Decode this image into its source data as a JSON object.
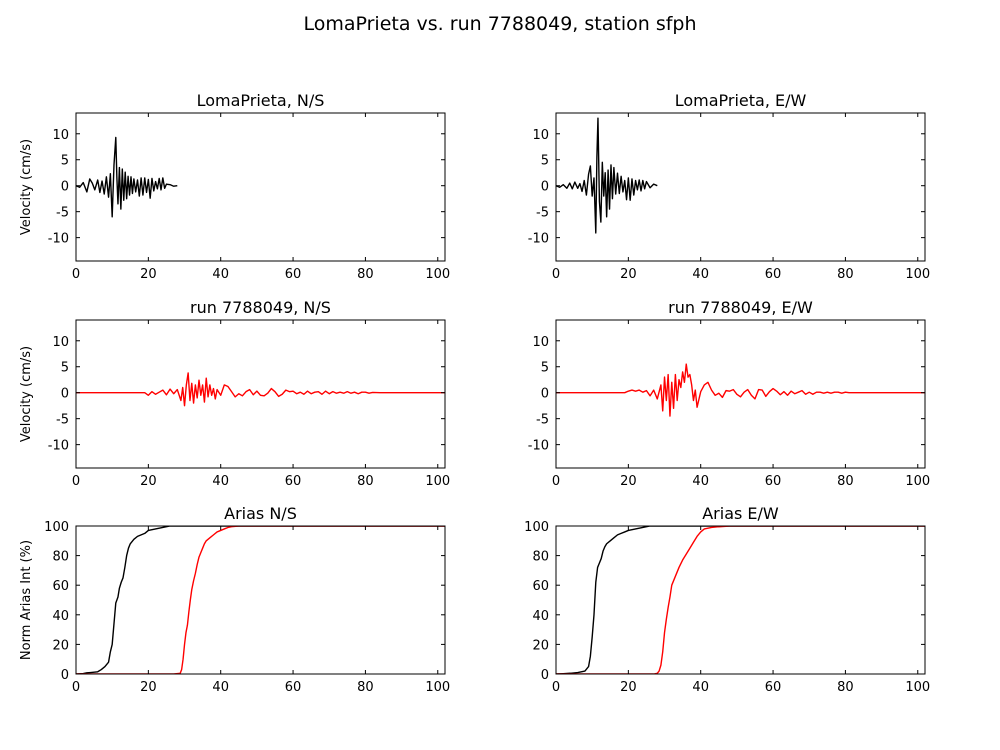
{
  "figure": {
    "title": "LomaPrieta vs. run 7788049, station sfph"
  },
  "colors": {
    "recorded": "#000000",
    "simulated": "#ff0000",
    "axes": "#000000",
    "background": "#ffffff"
  },
  "chart_data": [
    {
      "id": "vel-rec-ns",
      "type": "line",
      "title": "LomaPrieta, N/S",
      "xlabel": "",
      "ylabel": "Velocity (cm/s)",
      "xlim": [
        0,
        102
      ],
      "ylim": [
        -14.5,
        14
      ],
      "xticks": [
        0,
        20,
        40,
        60,
        80,
        100
      ],
      "yticks": [
        10,
        5,
        0,
        -5,
        -10
      ],
      "series": [
        {
          "color": "#000000",
          "x": [
            0,
            1,
            2,
            3,
            3.8,
            4.5,
            5.2,
            6,
            6.6,
            7.2,
            7.8,
            8.4,
            9,
            9.5,
            10,
            10.5,
            11,
            11.3,
            11.6,
            12,
            12.4,
            12.8,
            13.2,
            13.6,
            14,
            14.4,
            14.8,
            15.2,
            15.6,
            16,
            16.5,
            17,
            17.5,
            18,
            18.5,
            19,
            19.5,
            20,
            20.5,
            21,
            21.5,
            22,
            22.5,
            23,
            23.5,
            24,
            24.5,
            25,
            26,
            27,
            28
          ],
          "y": [
            0,
            -0.3,
            0.6,
            -1.2,
            1.3,
            0.5,
            -0.8,
            1.1,
            -1.3,
            0.9,
            -1.6,
            1.7,
            -2.2,
            2.3,
            -6,
            4,
            9.3,
            1.5,
            -3.5,
            3.5,
            -4.5,
            3.2,
            -2.8,
            2.6,
            -2.5,
            1.8,
            -1.8,
            1.7,
            -1.5,
            1.3,
            -1.2,
            1.1,
            -2,
            1.5,
            -1.8,
            1.5,
            -1.3,
            1.2,
            -2.4,
            1.4,
            -1,
            0.8,
            -0.6,
            1.4,
            -0.8,
            1.5,
            -0.5,
            0.3,
            0.2,
            -0.1,
            0
          ]
        }
      ]
    },
    {
      "id": "vel-rec-ew",
      "type": "line",
      "title": "LomaPrieta, E/W",
      "xlabel": "",
      "ylabel": "",
      "xlim": [
        0,
        102
      ],
      "ylim": [
        -14.5,
        14
      ],
      "xticks": [
        0,
        20,
        40,
        60,
        80,
        100
      ],
      "yticks": [
        10,
        5,
        0,
        -5,
        -10
      ],
      "series": [
        {
          "color": "#000000",
          "x": [
            0,
            1,
            2,
            3,
            3.8,
            4.5,
            5.2,
            6,
            6.6,
            7.2,
            7.8,
            8.4,
            9,
            9.5,
            10,
            10.5,
            11,
            11.3,
            11.6,
            12,
            12.4,
            12.8,
            13.2,
            13.6,
            14,
            14.4,
            14.8,
            15.2,
            15.6,
            16,
            16.5,
            17,
            17.5,
            18,
            18.5,
            19,
            19.5,
            20,
            20.5,
            21,
            21.5,
            22,
            22.5,
            23,
            23.5,
            24,
            24.5,
            25,
            26,
            27,
            28
          ],
          "y": [
            0,
            -0.3,
            0.2,
            -0.5,
            0.5,
            -0.6,
            0.7,
            -0.5,
            0.4,
            -1.1,
            1,
            -1.8,
            2.2,
            3.8,
            -2,
            1.5,
            -9.1,
            5.5,
            13,
            -3,
            -7,
            4.5,
            -2,
            2.5,
            -6,
            3,
            -4.5,
            4,
            -2.5,
            3.5,
            -1.6,
            2.4,
            -1.5,
            1.8,
            -1.2,
            1,
            -2.7,
            1.5,
            -2.8,
            1.3,
            -1.8,
            1,
            -0.8,
            1.1,
            -1,
            1,
            -0.6,
            0.8,
            -0.4,
            0.3,
            0
          ]
        }
      ]
    },
    {
      "id": "vel-sim-ns",
      "type": "line",
      "title": "run 7788049, N/S",
      "xlabel": "",
      "ylabel": "Velocity (cm/s)",
      "xlim": [
        0,
        102
      ],
      "ylim": [
        -14.5,
        14
      ],
      "xticks": [
        0,
        20,
        40,
        60,
        80,
        100
      ],
      "yticks": [
        10,
        5,
        0,
        -5,
        -10
      ],
      "series": [
        {
          "color": "#ff0000",
          "x": [
            0,
            10,
            17,
            19,
            20,
            21,
            22,
            23,
            24,
            25,
            26,
            27,
            28,
            29,
            29.5,
            30,
            30.5,
            31,
            31.5,
            32,
            32.5,
            33,
            33.5,
            34,
            34.5,
            35,
            35.5,
            36,
            36.5,
            37,
            37.5,
            38,
            38.5,
            39,
            40,
            41,
            42,
            43,
            44,
            45,
            46,
            47,
            48,
            49,
            50,
            51,
            52,
            53,
            54,
            55,
            56,
            57,
            58,
            59,
            60,
            61,
            62,
            63,
            64,
            65,
            66,
            67,
            68,
            69,
            70,
            71,
            72,
            73,
            74,
            75,
            76,
            77,
            78,
            79,
            80,
            81,
            82,
            84,
            86,
            88,
            90,
            92,
            95,
            98,
            100,
            102
          ],
          "y": [
            0,
            0,
            0,
            0,
            -0.5,
            0.2,
            -0.3,
            0.1,
            0.5,
            -0.4,
            0.7,
            -0.2,
            0.6,
            -1.5,
            1,
            -2.5,
            1.5,
            3.8,
            -1.5,
            1.8,
            -2,
            1.5,
            -1,
            2.4,
            -0.5,
            1.5,
            -1.8,
            2.8,
            -0.8,
            1.5,
            -0.5,
            0.8,
            -1.2,
            0.6,
            -0.5,
            1.5,
            1.2,
            0.2,
            -0.8,
            -0.2,
            -0.6,
            0.2,
            0.6,
            -0.4,
            0.3,
            -0.5,
            -0.6,
            -0.1,
            0.8,
            0.2,
            -0.7,
            -0.3,
            0.5,
            0.2,
            0.3,
            -0.2,
            0.1,
            -0.3,
            0.3,
            -0.2,
            0.1,
            0.2,
            -0.3,
            0.3,
            -0.2,
            0.2,
            -0.1,
            0.1,
            -0.1,
            0.2,
            -0.1,
            0.1,
            -0.2,
            0.1,
            0.1,
            -0.1,
            0.05,
            0,
            0,
            0,
            0,
            0,
            0,
            0,
            0,
            0
          ]
        }
      ]
    },
    {
      "id": "vel-sim-ew",
      "type": "line",
      "title": "run 7788049, E/W",
      "xlabel": "",
      "ylabel": "",
      "xlim": [
        0,
        102
      ],
      "ylim": [
        -14.5,
        14
      ],
      "xticks": [
        0,
        20,
        40,
        60,
        80,
        100
      ],
      "yticks": [
        10,
        5,
        0,
        -5,
        -10
      ],
      "series": [
        {
          "color": "#ff0000",
          "x": [
            0,
            10,
            17,
            19,
            20,
            21,
            22,
            23,
            24,
            25,
            26,
            27,
            28,
            29,
            29.5,
            30,
            30.5,
            31,
            31.5,
            32,
            32.5,
            33,
            33.5,
            34,
            34.5,
            35,
            35.5,
            36,
            36.5,
            37,
            37.5,
            38,
            38.5,
            39,
            40,
            41,
            42,
            43,
            44,
            45,
            46,
            47,
            48,
            49,
            50,
            51,
            52,
            53,
            54,
            55,
            56,
            57,
            58,
            59,
            60,
            61,
            62,
            63,
            64,
            65,
            66,
            67,
            68,
            69,
            70,
            71,
            72,
            73,
            74,
            75,
            76,
            77,
            78,
            79,
            80,
            81,
            82,
            84,
            86,
            88,
            90,
            92,
            95,
            98,
            100,
            102
          ],
          "y": [
            0,
            0,
            0,
            0,
            0.3,
            0.5,
            0.3,
            0.5,
            0.1,
            0.4,
            -0.6,
            0.5,
            -1.2,
            1.5,
            -3.5,
            3,
            -1.5,
            3.5,
            -4.5,
            2,
            -3,
            3.5,
            -1.5,
            2.5,
            1,
            4,
            2,
            5.5,
            3,
            3.5,
            1.5,
            -1.5,
            0.5,
            -2.8,
            0.2,
            1.5,
            2,
            0.5,
            -0.5,
            -0.1,
            -0.9,
            0.4,
            0.3,
            0.6,
            -0.3,
            -0.8,
            0.1,
            0.6,
            -0.5,
            -1.2,
            0.6,
            0.5,
            -0.7,
            0.2,
            0.8,
            0.3,
            -0.4,
            0.2,
            -0.5,
            0.3,
            -0.2,
            0.1,
            0.4,
            -0.3,
            0.1,
            -0.3,
            0.1,
            0.1,
            -0.1,
            0.1,
            -0.1,
            0.1,
            0.1,
            -0.1,
            0.1,
            0,
            0,
            0,
            0,
            0,
            0,
            0,
            0,
            0,
            0,
            0
          ]
        }
      ]
    },
    {
      "id": "arias-ns",
      "type": "line",
      "title": "Arias N/S",
      "xlabel": "",
      "ylabel": "Norm Arias Int (%)",
      "xlim": [
        0,
        102
      ],
      "ylim": [
        0,
        100
      ],
      "xticks": [
        0,
        20,
        40,
        60,
        80,
        100
      ],
      "yticks": [
        100,
        80,
        60,
        40,
        20,
        0
      ],
      "series": [
        {
          "color": "#000000",
          "x": [
            0,
            2,
            3,
            4,
            6,
            7,
            8,
            9,
            9.5,
            10,
            10.5,
            11,
            11.3,
            11.6,
            12,
            12.5,
            13,
            13.5,
            14,
            14.5,
            15,
            16,
            17,
            18,
            19,
            20,
            22,
            24,
            26,
            30,
            40,
            102
          ],
          "y": [
            0,
            0.3,
            0.8,
            1,
            1.5,
            3,
            5,
            8,
            15,
            20,
            34,
            48,
            50,
            52,
            58,
            62,
            65,
            72,
            80,
            85,
            88,
            91,
            93,
            94,
            95,
            97,
            98,
            99,
            100,
            100,
            100,
            100
          ]
        },
        {
          "color": "#ff0000",
          "x": [
            0,
            27,
            28.8,
            29.2,
            29.6,
            30,
            30.4,
            30.8,
            31.2,
            31.6,
            32,
            32.5,
            33,
            33.5,
            34,
            34.5,
            35,
            35.5,
            36,
            37,
            38,
            39,
            40,
            41,
            42,
            43,
            45,
            50,
            102
          ],
          "y": [
            0,
            0,
            0.5,
            3,
            10,
            20,
            28,
            33,
            42,
            50,
            57,
            63,
            68,
            74,
            79,
            82,
            85,
            88,
            90,
            92,
            94,
            96,
            97,
            98,
            99,
            99.5,
            100,
            100,
            100
          ]
        }
      ]
    },
    {
      "id": "arias-ew",
      "type": "line",
      "title": "Arias E/W",
      "xlabel": "",
      "ylabel": "",
      "xlim": [
        0,
        102
      ],
      "ylim": [
        0,
        100
      ],
      "xticks": [
        0,
        20,
        40,
        60,
        80,
        100
      ],
      "yticks": [
        100,
        80,
        60,
        40,
        20,
        0
      ],
      "series": [
        {
          "color": "#000000",
          "x": [
            0,
            2,
            4,
            6,
            8,
            9,
            9.5,
            10,
            10.5,
            11,
            11.5,
            12,
            12.5,
            13,
            13.5,
            14,
            15,
            16,
            17,
            18,
            19,
            20,
            22,
            24,
            26,
            30,
            102
          ],
          "y": [
            0,
            0.2,
            0.5,
            1,
            2,
            5,
            12,
            25,
            40,
            62,
            72,
            75,
            78,
            83,
            86,
            88,
            90,
            92,
            94,
            95,
            96,
            97,
            98,
            99,
            100,
            100,
            100
          ]
        },
        {
          "color": "#ff0000",
          "x": [
            0,
            27,
            28,
            28.5,
            29,
            29.5,
            30,
            30.5,
            31,
            31.5,
            32,
            33,
            34,
            35,
            36,
            37,
            38,
            39,
            40,
            41,
            42,
            43,
            45,
            48,
            50,
            102
          ],
          "y": [
            0,
            0,
            0.5,
            2,
            6,
            15,
            28,
            37,
            45,
            52,
            60,
            66,
            72,
            77,
            81,
            85,
            89,
            93,
            96,
            98,
            98.5,
            99,
            99.5,
            100,
            100,
            100
          ]
        }
      ]
    }
  ]
}
